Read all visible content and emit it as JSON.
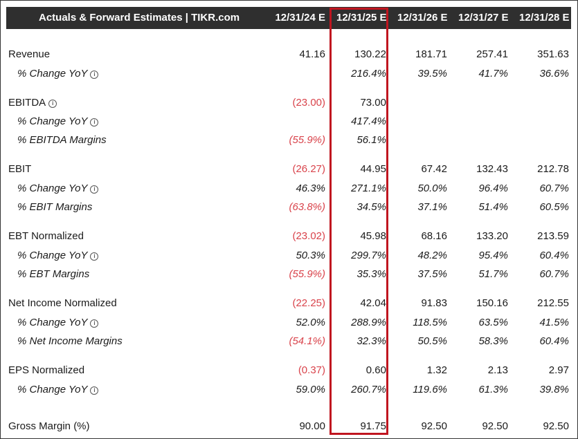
{
  "header": {
    "title": "Actuals & Forward Estimates | TIKR.com",
    "periods": [
      "12/31/24 E",
      "12/31/25 E",
      "12/31/26 E",
      "12/31/27 E",
      "12/31/28 E"
    ]
  },
  "rows": [
    {
      "label": "Revenue",
      "values": [
        "41.16",
        "130.22",
        "181.71",
        "257.41",
        "351.63"
      ]
    },
    {
      "label": "% Change YoY",
      "values": [
        "",
        "216.4%",
        "39.5%",
        "41.7%",
        "36.6%"
      ]
    },
    {
      "label": "EBITDA",
      "values": [
        "(23.00)",
        "73.00",
        "",
        "",
        ""
      ]
    },
    {
      "label": "% Change YoY",
      "values": [
        "",
        "417.4%",
        "",
        "",
        ""
      ]
    },
    {
      "label": "% EBITDA Margins",
      "values": [
        "(55.9%)",
        "56.1%",
        "",
        "",
        ""
      ]
    },
    {
      "label": "EBIT",
      "values": [
        "(26.27)",
        "44.95",
        "67.42",
        "132.43",
        "212.78"
      ]
    },
    {
      "label": "% Change YoY",
      "values": [
        "46.3%",
        "271.1%",
        "50.0%",
        "96.4%",
        "60.7%"
      ]
    },
    {
      "label": "% EBIT Margins",
      "values": [
        "(63.8%)",
        "34.5%",
        "37.1%",
        "51.4%",
        "60.5%"
      ]
    },
    {
      "label": "EBT Normalized",
      "values": [
        "(23.02)",
        "45.98",
        "68.16",
        "133.20",
        "213.59"
      ]
    },
    {
      "label": "% Change YoY",
      "values": [
        "50.3%",
        "299.7%",
        "48.2%",
        "95.4%",
        "60.4%"
      ]
    },
    {
      "label": "% EBT Margins",
      "values": [
        "(55.9%)",
        "35.3%",
        "37.5%",
        "51.7%",
        "60.7%"
      ]
    },
    {
      "label": "Net Income Normalized",
      "values": [
        "(22.25)",
        "42.04",
        "91.83",
        "150.16",
        "212.55"
      ]
    },
    {
      "label": "% Change YoY",
      "values": [
        "52.0%",
        "288.9%",
        "118.5%",
        "63.5%",
        "41.5%"
      ]
    },
    {
      "label": "% Net Income Margins",
      "values": [
        "(54.1%)",
        "32.3%",
        "50.5%",
        "58.3%",
        "60.4%"
      ]
    },
    {
      "label": "EPS Normalized",
      "values": [
        "(0.37)",
        "0.60",
        "1.32",
        "2.13",
        "2.97"
      ]
    },
    {
      "label": "% Change YoY",
      "values": [
        "59.0%",
        "260.7%",
        "119.6%",
        "61.3%",
        "39.8%"
      ]
    },
    {
      "label": "Gross Margin (%)",
      "values": [
        "90.00",
        "91.75",
        "92.50",
        "92.50",
        "92.50"
      ]
    }
  ],
  "info_icon": "info-circle-icon",
  "colors": {
    "header_bg": "#2f2f2f",
    "negative": "#d9434b",
    "highlight_border": "#c0151f"
  }
}
